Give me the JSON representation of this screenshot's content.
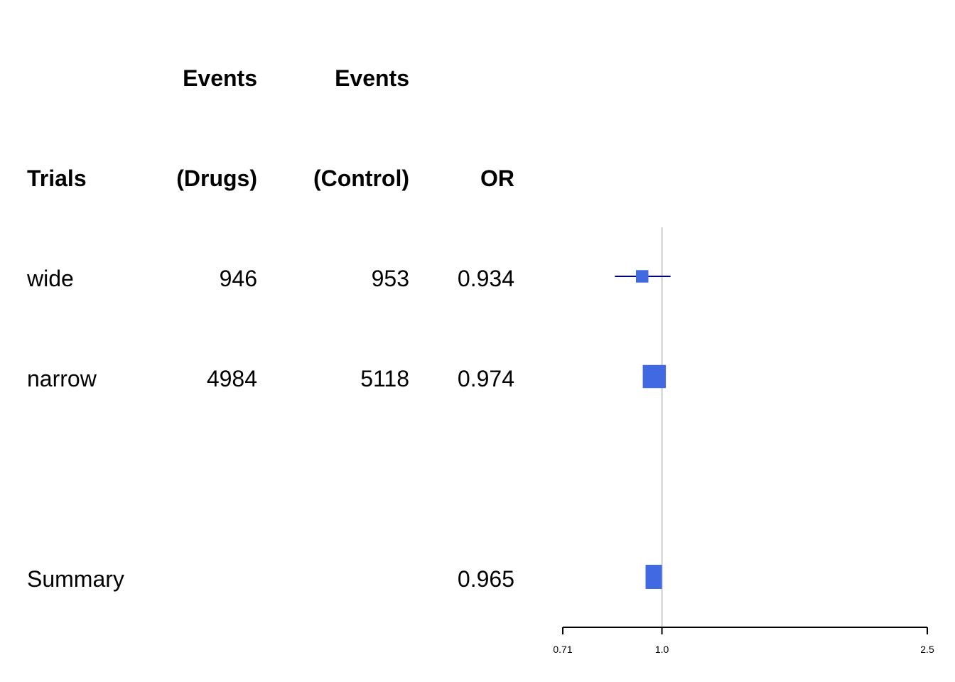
{
  "chart_data": {
    "type": "forest",
    "header": {
      "row1": [
        "",
        "Events",
        "Events",
        ""
      ],
      "row2": [
        "Trials",
        "(Drugs)",
        "(Control)",
        "OR"
      ]
    },
    "rows": [
      {
        "label": "wide",
        "drugs": "946",
        "control": "953",
        "or_text": "0.934",
        "or": 0.934,
        "lower": 0.85,
        "upper": 1.03,
        "is_summary": false,
        "box": 0.35
      },
      {
        "label": "narrow",
        "drugs": "4984",
        "control": "5118",
        "or_text": "0.974",
        "or": 0.974,
        "lower": 0.945,
        "upper": 1.01,
        "is_summary": false,
        "box": 0.65
      }
    ],
    "summary": {
      "label": "Summary",
      "or_text": "0.965",
      "or": 0.965,
      "lower": 0.945,
      "upper": 1.0
    },
    "x_axis": {
      "scale": "log",
      "range": [
        0.71,
        2.5
      ],
      "ticks": [
        0.71,
        1.0,
        2.5
      ],
      "tick_labels": [
        "0.71",
        "1.0",
        "2.5"
      ]
    },
    "reference_line": 1.0,
    "colors": {
      "box": "#4169E1",
      "line": "#000080",
      "zero_line": "#cccccc",
      "axis": "#000000"
    }
  }
}
